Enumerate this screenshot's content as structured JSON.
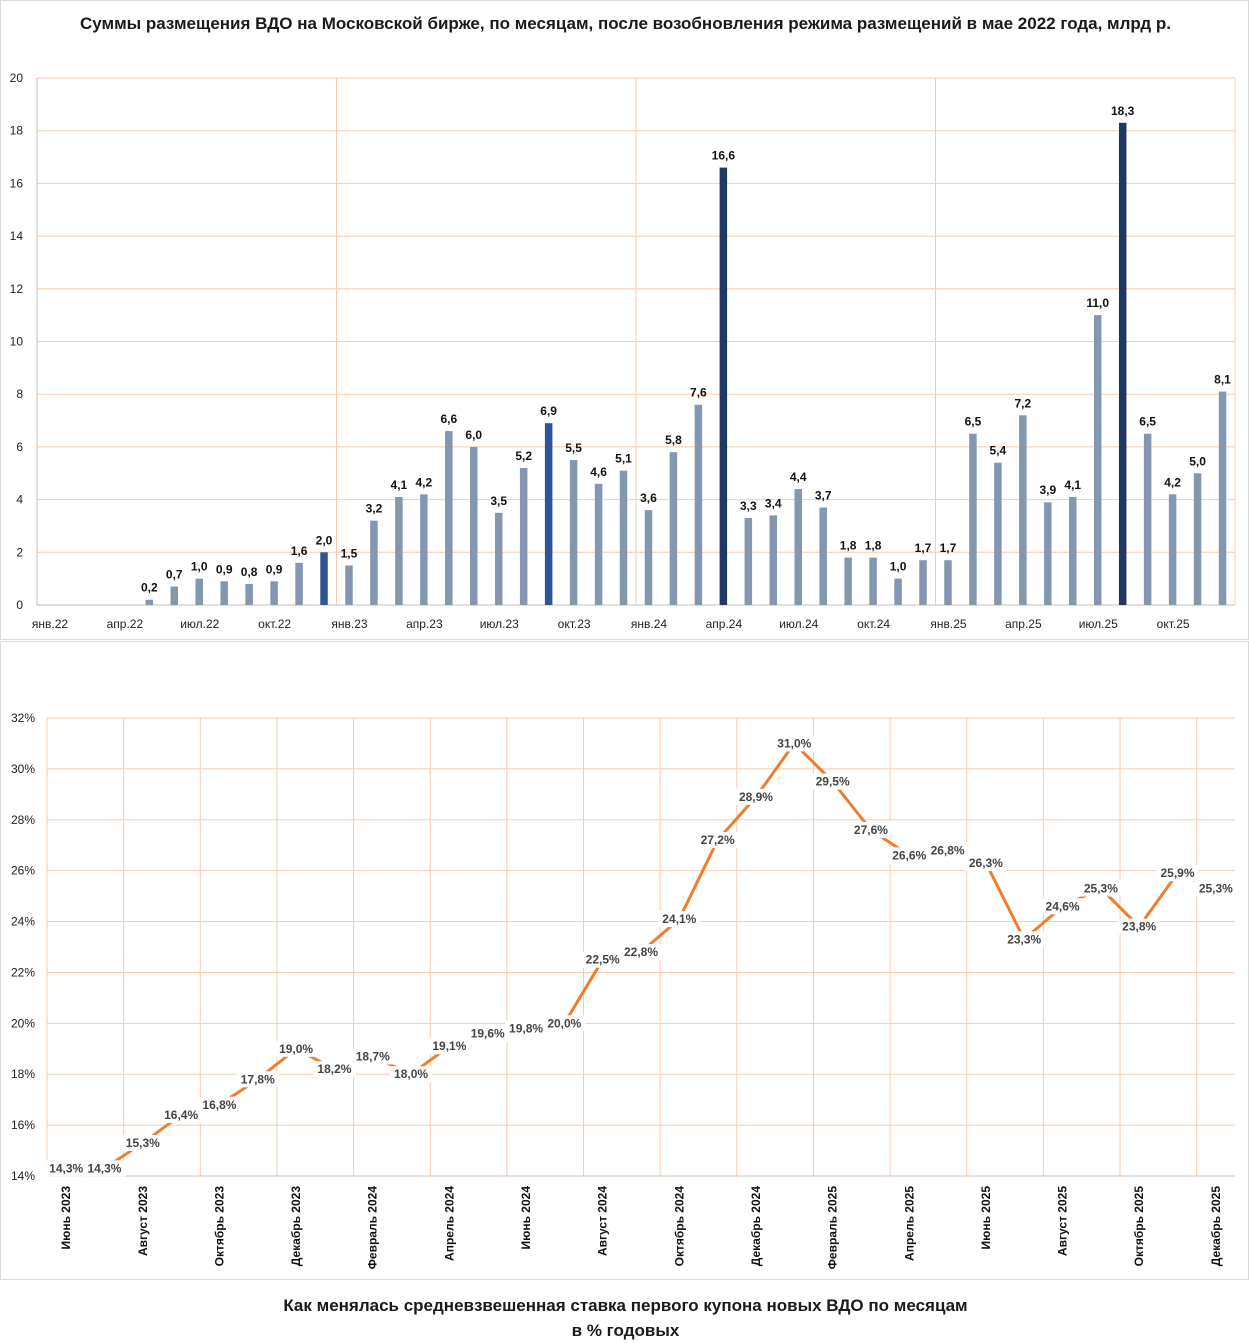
{
  "chart_data": [
    {
      "type": "bar",
      "title": "Суммы размещения ВДО на Московской бирже, по месяцам, после возобновления режима размещений в мае 2022 года, млрд р.",
      "ylim": [
        0,
        20
      ],
      "yticks": [
        "0",
        "2",
        "4",
        "6",
        "8",
        "10",
        "12",
        "14",
        "16",
        "18",
        "20"
      ],
      "grid": true,
      "x_tick_labels": [
        "янв.22",
        "апр.22",
        "июл.22",
        "окт.22",
        "янв.23",
        "апр.23",
        "июл.23",
        "окт.23",
        "янв.24",
        "апр.24",
        "июл.24",
        "окт.24",
        "янв.25",
        "апр.25",
        "июл.25",
        "окт.25"
      ],
      "categories": [
        "янв.22",
        "фев.22",
        "мар.22",
        "апр.22",
        "май.22",
        "июн.22",
        "июл.22",
        "авг.22",
        "сен.22",
        "окт.22",
        "ноя.22",
        "дек.22",
        "янв.23",
        "фев.23",
        "мар.23",
        "апр.23",
        "май.23",
        "июн.23",
        "июл.23",
        "авг.23",
        "сен.23",
        "окт.23",
        "ноя.23",
        "дек.23",
        "янв.24",
        "фев.24",
        "мар.24",
        "апр.24",
        "май.24",
        "июн.24",
        "июл.24",
        "авг.24",
        "сен.24",
        "окт.24",
        "ноя.24",
        "дек.24",
        "янв.25",
        "фев.25",
        "мар.25",
        "апр.25",
        "май.25",
        "июн.25",
        "июл.25",
        "авг.25",
        "сен.25",
        "окт.25",
        "ноя.25",
        "дек.25"
      ],
      "values": [
        null,
        null,
        null,
        null,
        0.2,
        0.7,
        1.0,
        0.9,
        0.8,
        0.9,
        1.6,
        2.0,
        1.5,
        3.2,
        4.1,
        4.2,
        6.6,
        6.0,
        3.5,
        5.2,
        6.9,
        5.5,
        4.6,
        5.1,
        3.6,
        5.8,
        7.6,
        16.6,
        3.3,
        3.4,
        4.4,
        3.7,
        1.8,
        1.8,
        1.0,
        1.7,
        1.7,
        6.5,
        5.4,
        7.2,
        3.9,
        4.1,
        11.0,
        18.3,
        6.5,
        4.2,
        5.0,
        8.1
      ],
      "value_labels": [
        "",
        "",
        "",
        "",
        "0,2",
        "0,7",
        "1,0",
        "0,9",
        "0,8",
        "0,9",
        "1,6",
        "2,0",
        "1,5",
        "3,2",
        "4,1",
        "4,2",
        "6,6",
        "6,0",
        "3,5",
        "5,2",
        "6,9",
        "5,5",
        "4,6",
        "5,1",
        "3,6",
        "5,8",
        "7,6",
        "16,6",
        "3,3",
        "3,4",
        "4,4",
        "3,7",
        "1,8",
        "1,8",
        "1,0",
        "1,7",
        "1,7",
        "6,5",
        "5,4",
        "7,2",
        "3,9",
        "4,1",
        "11,0",
        "18,3",
        "6,5",
        "4,2",
        "5,0",
        "8,1"
      ],
      "colors": {
        "default": "#8497b0",
        "highlight_medium": "#2f5597",
        "highlight_dark": "#1f3864",
        "grid": "#f8cbad"
      },
      "highlight_medium_indices": [
        11,
        20
      ],
      "highlight_dark_indices": [
        27,
        43
      ]
    },
    {
      "type": "line",
      "title": "Как менялась средневзвешенная ставка первого купона новых ВДО по месяцам в % годовых",
      "ylim": [
        14,
        32
      ],
      "yticks": [
        "14%",
        "16%",
        "18%",
        "20%",
        "22%",
        "24%",
        "26%",
        "28%",
        "30%",
        "32%"
      ],
      "grid": true,
      "x_tick_labels": [
        "Июнь 2023",
        "Август 2023",
        "Октябрь 2023",
        "Декабрь 2023",
        "Февраль 2024",
        "Апрель 2024",
        "Июнь 2024",
        "Август 2024",
        "Октябрь 2024",
        "Декабрь 2024",
        "Февраль 2025",
        "Апрель 2025",
        "Июнь 2025",
        "Август 2025",
        "Октябрь 2025",
        "Декабрь 2025"
      ],
      "x": [
        "Июнь 2023",
        "Июль 2023",
        "Август 2023",
        "Сентябрь 2023",
        "Октябрь 2023",
        "Ноябрь 2023",
        "Декабрь 2023",
        "Январь 2024",
        "Февраль 2024",
        "Март 2024",
        "Апрель 2024",
        "Май 2024",
        "Июнь 2024",
        "Июль 2024",
        "Август 2024",
        "Сентябрь 2024",
        "Октябрь 2024",
        "Ноябрь 2024",
        "Декабрь 2024",
        "Январь 2025",
        "Февраль 2025",
        "Март 2025",
        "Апрель 2025",
        "Май 2025",
        "Июнь 2025",
        "Июль 2025",
        "Август 2025",
        "Сентябрь 2025",
        "Октябрь 2025",
        "Ноябрь 2025",
        "Декабрь 2025"
      ],
      "values": [
        14.3,
        14.3,
        15.3,
        16.4,
        16.8,
        17.8,
        19.0,
        18.2,
        18.7,
        18.0,
        19.1,
        19.6,
        19.8,
        20.0,
        22.5,
        22.8,
        24.1,
        27.2,
        28.9,
        31.0,
        29.5,
        27.6,
        26.6,
        26.8,
        26.3,
        23.3,
        24.6,
        25.3,
        23.8,
        25.9,
        25.3
      ],
      "value_labels": [
        "14,3%",
        "14,3%",
        "15,3%",
        "16,4%",
        "16,8%",
        "17,8%",
        "19,0%",
        "18,2%",
        "18,7%",
        "18,0%",
        "19,1%",
        "19,6%",
        "19,8%",
        "20,0%",
        "22,5%",
        "22,8%",
        "24,1%",
        "27,2%",
        "28,9%",
        "31,0%",
        "29,5%",
        "27,6%",
        "26,6%",
        "26,8%",
        "26,3%",
        "23,3%",
        "24,6%",
        "25,3%",
        "23,8%",
        "25,9%",
        "25,3%"
      ],
      "colors": {
        "line": "#ed7d31",
        "grid": "#f8cbad"
      }
    }
  ]
}
